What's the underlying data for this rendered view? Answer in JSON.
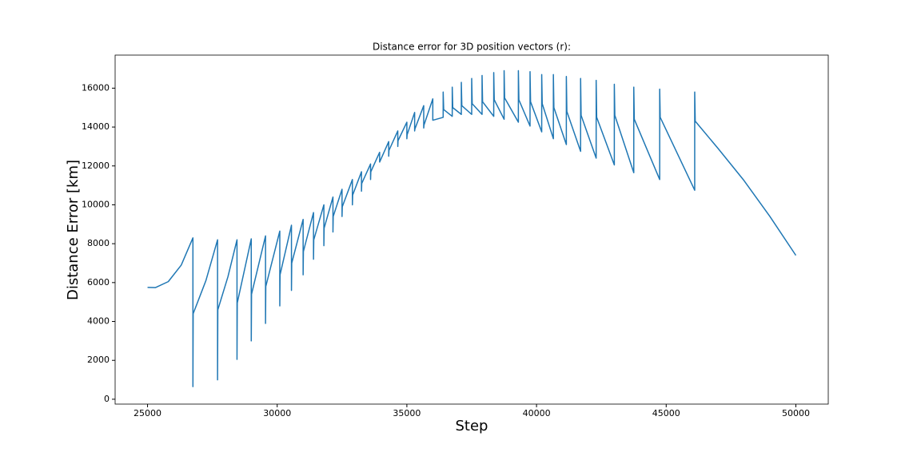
{
  "chart_data": {
    "type": "line",
    "title": "Distance error for 3D position vectors (r):",
    "x_label": "Step",
    "y_label": "Distance Error [km]",
    "color": "#1f77b4",
    "x": [
      25000,
      25300,
      25800,
      26300,
      26750,
      26750,
      26760,
      27250,
      27700,
      27700,
      27710,
      28100,
      28450,
      28450,
      28460,
      29000,
      29000,
      29010,
      29550,
      29550,
      29560,
      30100,
      30100,
      30110,
      30550,
      30550,
      30560,
      31000,
      31000,
      31010,
      31400,
      31400,
      31410,
      31800,
      31800,
      31810,
      32150,
      32150,
      32160,
      32500,
      32500,
      32510,
      32900,
      32900,
      32910,
      33250,
      33250,
      33260,
      33600,
      33600,
      33610,
      33950,
      33950,
      34300,
      34300,
      34310,
      34650,
      34650,
      34660,
      35000,
      35000,
      35010,
      35300,
      35300,
      35310,
      35650,
      35650,
      35660,
      36000,
      36000,
      36400,
      36400,
      36420,
      36750,
      36750,
      36770,
      37100,
      37100,
      37120,
      37500,
      37500,
      37520,
      37900,
      37900,
      37920,
      38350,
      38350,
      38370,
      38750,
      38750,
      38770,
      39300,
      39300,
      39320,
      39750,
      39750,
      39770,
      40200,
      40200,
      40220,
      40650,
      40650,
      40670,
      41150,
      41150,
      41170,
      41700,
      41700,
      41720,
      42300,
      42300,
      42320,
      43000,
      43000,
      43020,
      43750,
      43750,
      43770,
      44750,
      44750,
      44770,
      46100,
      46100,
      46120,
      47000,
      48000,
      49000,
      50000
    ],
    "values": [
      5750,
      5740,
      6050,
      6900,
      8300,
      650,
      4400,
      6100,
      8200,
      1000,
      4600,
      6300,
      8200,
      2050,
      4950,
      8250,
      3000,
      5400,
      8400,
      3900,
      5800,
      8650,
      4800,
      6400,
      8950,
      5600,
      7000,
      9250,
      6400,
      7600,
      9600,
      7200,
      8200,
      10000,
      7900,
      8800,
      10400,
      8600,
      9400,
      10800,
      9400,
      9900,
      11300,
      10000,
      10500,
      11700,
      10700,
      11100,
      12100,
      11300,
      11700,
      12700,
      12200,
      13250,
      12500,
      12800,
      13800,
      13000,
      13300,
      14250,
      13400,
      13600,
      14750,
      13800,
      13900,
      15100,
      13950,
      14100,
      15450,
      14350,
      14500,
      15800,
      14900,
      14550,
      16050,
      15000,
      14650,
      16300,
      15100,
      14650,
      16500,
      15200,
      14650,
      16650,
      15300,
      14550,
      16800,
      15400,
      14400,
      16900,
      15500,
      14250,
      16900,
      15400,
      14050,
      16850,
      15300,
      13750,
      16700,
      15200,
      13400,
      16700,
      15000,
      13100,
      16600,
      14800,
      12750,
      16500,
      14600,
      12400,
      16400,
      14500,
      12050,
      16200,
      14600,
      11650,
      16050,
      14400,
      11300,
      15950,
      14500,
      10750,
      15800,
      14300,
      12900,
      11250,
      9400,
      7400
    ],
    "xlim": [
      23750,
      51250
    ],
    "ylim": [
      -250,
      17700
    ],
    "xticks": [
      25000,
      30000,
      35000,
      40000,
      45000,
      50000
    ],
    "yticks": [
      0,
      2000,
      4000,
      6000,
      8000,
      10000,
      12000,
      14000,
      16000
    ]
  }
}
